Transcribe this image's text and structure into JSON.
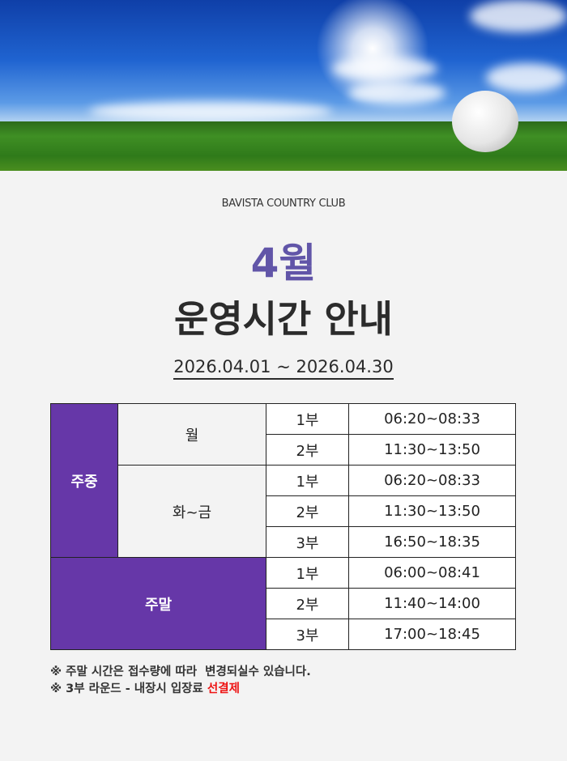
{
  "header": {
    "club_name": "BAVISTA COUNTRY CLUB",
    "month": "4월",
    "title": "운영시간 안내",
    "period": "2026.04.01 ~ 2026.04.30"
  },
  "schedule": {
    "weekday": {
      "label": "주중",
      "groups": [
        {
          "day": "월",
          "sessions": [
            {
              "part": "1부",
              "time": "06:20~08:33"
            },
            {
              "part": "2부",
              "time": "11:30~13:50"
            }
          ]
        },
        {
          "day": "화~금",
          "sessions": [
            {
              "part": "1부",
              "time": "06:20~08:33"
            },
            {
              "part": "2부",
              "time": "11:30~13:50"
            },
            {
              "part": "3부",
              "time": "16:50~18:35"
            }
          ]
        }
      ]
    },
    "weekend": {
      "label": "주말",
      "sessions": [
        {
          "part": "1부",
          "time": "06:00~08:41"
        },
        {
          "part": "2부",
          "time": "11:40~14:00"
        },
        {
          "part": "3부",
          "time": "17:00~18:45"
        }
      ]
    }
  },
  "notes": {
    "line1": "※ 주말 시간은 접수량에 따라  변경되실수 있습니다.",
    "line2_prefix": "※ 3부 라운드 - 내장시 입장료 ",
    "line2_highlight": "선결제"
  },
  "colors": {
    "accent_purple": "#6637a8",
    "month_purple": "#6155a8",
    "highlight_red": "#ee1111"
  }
}
